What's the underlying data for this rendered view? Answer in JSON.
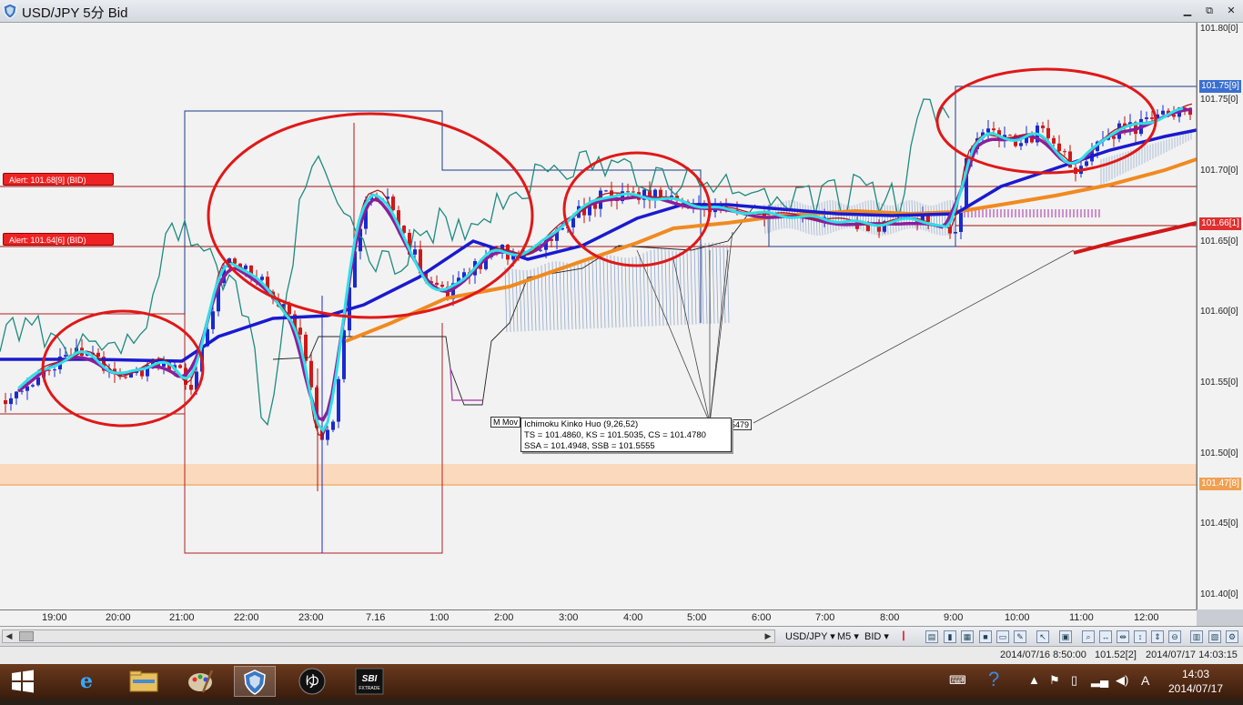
{
  "window": {
    "title": "USD/JPY 5分 Bid",
    "controls": {
      "minimize": "▁",
      "restore": "⧉",
      "close": "✕"
    }
  },
  "price_axis": {
    "labels": [
      "101.80[0]",
      "101.75[0]",
      "101.70[0]",
      "101.65[0]",
      "101.60[0]",
      "101.55[0]",
      "101.50[0]",
      "101.45[0]",
      "101.40[0]"
    ],
    "tags": [
      {
        "text": "101.75[9]",
        "color": "#3a6fd0"
      },
      {
        "text": "101.66[1]",
        "color": "#e03030"
      },
      {
        "text": "101.47[8]",
        "color": "#f0a050"
      }
    ]
  },
  "time_axis": {
    "labels": [
      "19:00",
      "20:00",
      "21:00",
      "22:00",
      "23:00",
      "7.16",
      "1:00",
      "2:00",
      "3:00",
      "4:00",
      "5:00",
      "6:00",
      "7:00",
      "8:00",
      "9:00",
      "10:00",
      "11:00",
      "12:00"
    ]
  },
  "alerts": [
    {
      "text": "Alert: 101.68[9] (BID)"
    },
    {
      "text": "Alert: 101.64[6] (BID)"
    }
  ],
  "tooltip": {
    "line1": "Ichimoku Kinko Huo (9,26,52)",
    "line2": "TS = 101.4860, KS = 101.5035, CS = 101.4780",
    "line3": "SSA = 101.4948, SSB = 101.5555",
    "mini_left": "M Mov",
    "mini_right": "5479"
  },
  "toolbar": {
    "symbol": "USD/JPY ▾",
    "timeframe": "M5 ▾",
    "side": "BID ▾"
  },
  "status": {
    "cursor_time": "2014/07/16 8:50:00",
    "cursor_price": "101.52[2]",
    "server_time": "2014/07/17 14:03:15"
  },
  "taskbar": {
    "clock_time": "14:03",
    "clock_date": "2014/07/17",
    "ime": "A"
  },
  "colors": {
    "cyan": "#2de0e8",
    "purple": "#8a1f9a",
    "blue": "#1a1ad0",
    "orange": "#f08a20",
    "teal": "#1f8a80",
    "dark_red": "#b01818",
    "circle": "#e01818"
  },
  "icons": [
    "minimize-icon",
    "restore-icon",
    "close-icon",
    "start-icon",
    "ie-icon",
    "explorer-icon",
    "paint-icon",
    "trading-icon",
    "yutori-icon",
    "sbi-fxtrade-icon"
  ]
}
